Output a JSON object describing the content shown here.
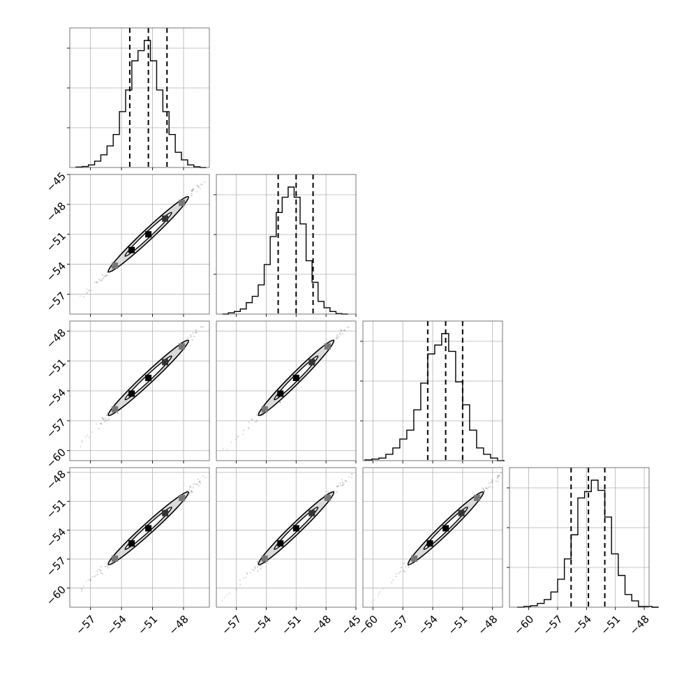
{
  "chart_data": {
    "type": "corner",
    "parameters": 4,
    "grid": true,
    "colors": {
      "line": "#000000",
      "grid": "#b0b0b0",
      "frame": "#555555",
      "fill": "#dadada"
    },
    "axis_ranges": [
      [
        -59,
        -45.5
      ],
      [
        -59,
        -45
      ],
      [
        -61,
        -47
      ],
      [
        -62,
        -47.5
      ]
    ],
    "tick_values": [
      [
        -57,
        -54,
        -51,
        -48
      ],
      [
        -57,
        -54,
        -51,
        -48,
        -45
      ],
      [
        -60,
        -57,
        -54,
        -51,
        -48
      ],
      [
        -60,
        -57,
        -54,
        -51,
        -48
      ]
    ],
    "tick_labels": [
      [
        "−57",
        "−54",
        "−51",
        "−48"
      ],
      [
        "−57",
        "−54",
        "−51",
        "−48",
        "−45"
      ],
      [
        "−60",
        "−57",
        "−54",
        "−51",
        "−48"
      ],
      [
        "−60",
        "−57",
        "−54",
        "−51",
        "−48"
      ]
    ],
    "quantiles": [
      [
        -53.2,
        -51.4,
        -49.6
      ],
      [
        -52.8,
        -51.0,
        -49.3
      ],
      [
        -54.5,
        -52.7,
        -51.0
      ],
      [
        -55.6,
        -53.8,
        -52.1
      ]
    ],
    "histograms": [
      {
        "bin_start": -58.4,
        "bin_width": 0.6,
        "counts": [
          0.004,
          0.008,
          0.02,
          0.05,
          0.1,
          0.17,
          0.26,
          0.44,
          0.61,
          0.84,
          0.92,
          1.0,
          0.84,
          0.61,
          0.44,
          0.26,
          0.12,
          0.06,
          0.02,
          0.006,
          0.0
        ]
      },
      {
        "bin_start": -58.4,
        "bin_width": 0.6,
        "counts": [
          0.0,
          0.01,
          0.02,
          0.04,
          0.09,
          0.14,
          0.23,
          0.39,
          0.61,
          0.8,
          0.92,
          1.0,
          0.92,
          0.71,
          0.42,
          0.25,
          0.1,
          0.05,
          0.02,
          0.004,
          0.0
        ]
      },
      {
        "bin_start": -60.8,
        "bin_width": 0.7,
        "counts": [
          0.006,
          0.012,
          0.02,
          0.05,
          0.1,
          0.17,
          0.24,
          0.4,
          0.61,
          0.84,
          0.91,
          1.0,
          0.86,
          0.62,
          0.44,
          0.24,
          0.1,
          0.05,
          0.02,
          0.0
        ]
      },
      {
        "bin_start": -61.2,
        "bin_width": 0.7,
        "counts": [
          0.0,
          0.006,
          0.012,
          0.03,
          0.06,
          0.12,
          0.22,
          0.38,
          0.57,
          0.86,
          0.91,
          1.0,
          0.92,
          0.71,
          0.42,
          0.25,
          0.1,
          0.05,
          0.006,
          0.006,
          0.0
        ]
      }
    ],
    "pairs": [
      {
        "x_param": 0,
        "y_param": 1
      },
      {
        "x_param": 0,
        "y_param": 2
      },
      {
        "x_param": 1,
        "y_param": 2
      },
      {
        "x_param": 0,
        "y_param": 3
      },
      {
        "x_param": 1,
        "y_param": 3
      },
      {
        "x_param": 2,
        "y_param": 3
      }
    ]
  }
}
